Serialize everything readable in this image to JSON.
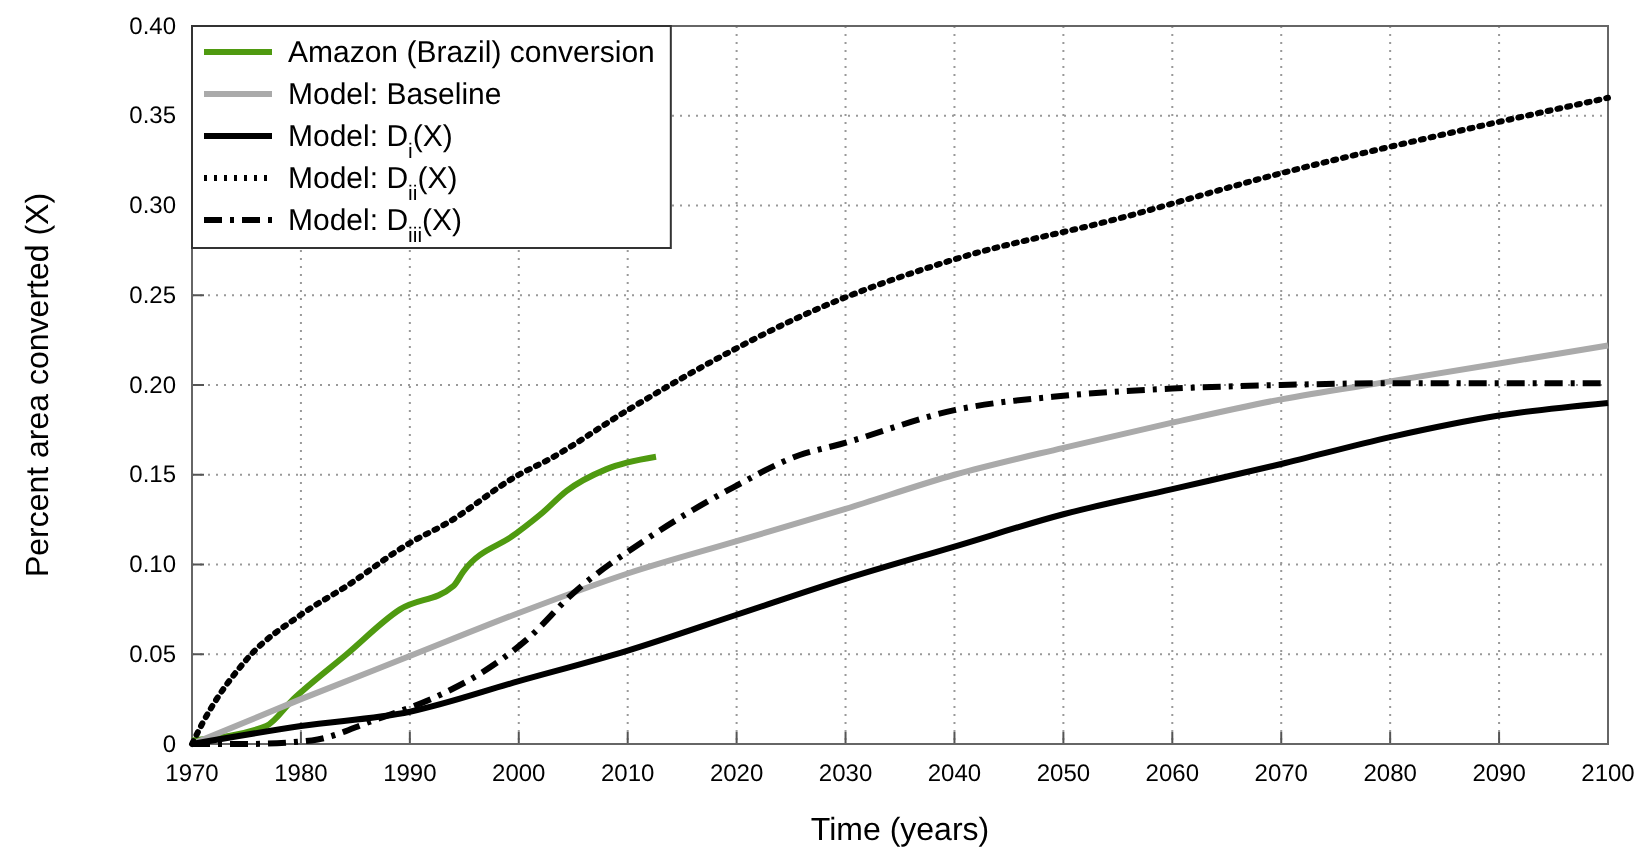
{
  "chart_data": {
    "type": "line",
    "xlabel": "Time (years)",
    "ylabel": "Percent area converted (X)",
    "xlim": [
      1970,
      2100
    ],
    "xticks": [
      1970,
      1980,
      1990,
      2000,
      2010,
      2020,
      2030,
      2040,
      2050,
      2060,
      2070,
      2080,
      2090,
      2100
    ],
    "ylim": [
      0,
      0.4
    ],
    "yticks": [
      0,
      0.05,
      {
        "value": 0.1,
        "label": "0.10"
      },
      0.15,
      {
        "value": 0.2,
        "label": "0.20"
      },
      0.25,
      {
        "value": 0.3,
        "label": "0.30"
      },
      0.35,
      {
        "value": 0.4,
        "label": "0.40"
      }
    ],
    "grid": true,
    "legend": "top left",
    "marker": "none",
    "series": [
      {
        "name": "Amazon (Brazil) conversion",
        "color": "#4f9a10",
        "line_style": "solid",
        "x": [
          1970,
          1976.8,
          1979.3,
          1984.2,
          1989.1,
          1994,
          1994.9,
          1999.7,
          2002.2,
          2004.4,
          2008,
          2012.6
        ],
        "values": [
          0.002,
          0.01,
          0.025,
          0.05,
          0.075,
          0.088,
          0.096,
          0.117,
          0.129,
          0.141,
          0.153,
          0.16
        ]
      },
      {
        "name": "Model: Baseline",
        "color": "#aaaaaa",
        "line_style": "solid",
        "x": [
          1970,
          1980,
          1990,
          2000,
          2010,
          2020,
          2030,
          2040,
          2050,
          2060,
          2070,
          2080,
          2090,
          2100
        ],
        "values": [
          0,
          0.025,
          0.049,
          0.073,
          0.095,
          0.113,
          0.131,
          0.15,
          0.165,
          0.179,
          0.192,
          0.202,
          0.212,
          0.222
        ]
      },
      {
        "name": "Model: D$_{i}$(X)",
        "color": "#000000",
        "line_style": "solid",
        "x": [
          1970,
          1980,
          1990,
          2000,
          2010,
          2020,
          2030,
          2040,
          2050,
          2060,
          2070,
          2080,
          2090,
          2100
        ],
        "values": [
          0,
          0.01,
          0.018,
          0.035,
          0.052,
          0.072,
          0.092,
          0.11,
          0.128,
          0.142,
          0.156,
          0.171,
          0.183,
          0.19
        ]
      },
      {
        "name": "Model: D$_{ii}$(X)",
        "color": "#000000",
        "line_style": "dotted",
        "x": [
          1970,
          1971,
          1975,
          1980,
          1984.2,
          1990,
          1993.4,
          2000,
          2002.6,
          2010,
          2018,
          2025.8,
          2040,
          2054.6,
          2070,
          2085.2,
          2100
        ],
        "values": [
          0,
          0.012,
          0.047,
          0.072,
          0.088,
          0.112,
          0.123,
          0.15,
          0.158,
          0.186,
          0.214,
          0.238,
          0.27,
          0.292,
          0.318,
          0.34,
          0.36
        ]
      },
      {
        "name": "Model: D$_{iii}$(X)",
        "color": "#000000",
        "line_style": "dashdot",
        "x": [
          1970,
          1975,
          1981,
          1986.6,
          1993,
          1996.4,
          2000.7,
          2005,
          2011.7,
          2019.7,
          2025.8,
          2029.5,
          2040,
          2050,
          2060,
          2070,
          2080,
          2100
        ],
        "values": [
          0,
          0,
          0.002,
          0.013,
          0.028,
          0.039,
          0.058,
          0.084,
          0.114,
          0.143,
          0.161,
          0.167,
          0.186,
          0.194,
          0.198,
          0.2,
          0.201,
          0.201
        ]
      }
    ]
  }
}
